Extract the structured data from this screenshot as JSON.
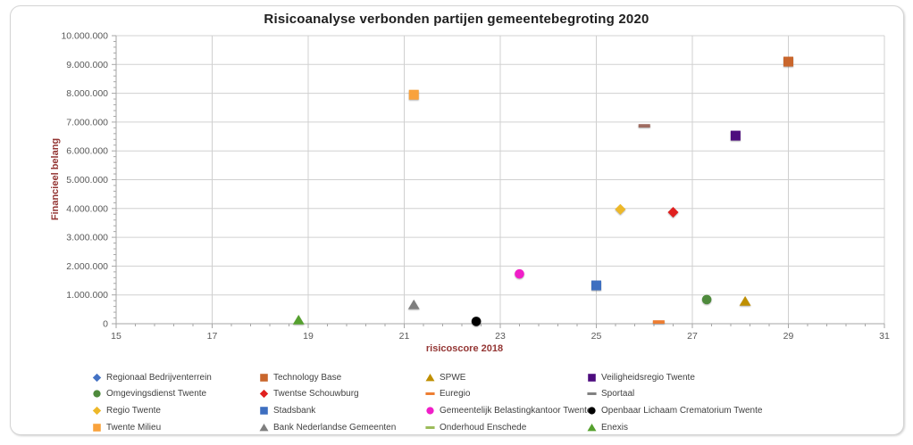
{
  "chart_data": {
    "type": "scatter",
    "title": "Risicoanalyse verbonden partijen gemeentebegroting 2020",
    "xlabel": "risicoscore 2018",
    "ylabel": "Financieel belang",
    "xlim": [
      15,
      31
    ],
    "ylim": [
      0,
      10000000
    ],
    "xticks": [
      15,
      17,
      19,
      21,
      23,
      25,
      27,
      29,
      31
    ],
    "x_minor_unit": 0.4,
    "yticks": [
      0,
      1000000,
      2000000,
      3000000,
      4000000,
      5000000,
      6000000,
      7000000,
      8000000,
      9000000,
      10000000
    ],
    "ytick_labels": [
      "0",
      "1.000.000",
      "2.000.000",
      "3.000.000",
      "4.000.000",
      "5.000.000",
      "6.000.000",
      "7.000.000",
      "8.000.000",
      "9.000.000",
      "10.000.000"
    ],
    "y_minor_unit": 200000,
    "grid": true,
    "legend_position": "bottom",
    "colors": {
      "title": "#1f1f1f",
      "axis_title": "#943634",
      "tick_label": "#595959",
      "axis_line": "#a6a6a6",
      "gridline": "#d0d0d0"
    },
    "series": [
      {
        "name": "Regionaal Bedrijventerrein",
        "marker": "diamond",
        "color": "#4472c4",
        "point": null
      },
      {
        "name": "Technology Base",
        "marker": "square",
        "color": "#c9662c",
        "point": [
          29.0,
          9100000
        ]
      },
      {
        "name": "SPWE",
        "marker": "triangle",
        "color": "#bf8f00",
        "point": [
          28.1,
          780000
        ]
      },
      {
        "name": "Veiligheidsregio Twente",
        "marker": "square",
        "color": "#4d0c7e",
        "point": [
          27.9,
          6530000
        ]
      },
      {
        "name": "Omgevingsdienst Twente",
        "marker": "circle",
        "color": "#4e8a3c",
        "point": [
          27.3,
          840000
        ]
      },
      {
        "name": "Twentse Schouwburg",
        "marker": "diamond",
        "color": "#e0201f",
        "point": [
          26.6,
          3870000
        ]
      },
      {
        "name": "Euregio",
        "marker": "dash",
        "color": "#ed7d31",
        "point": [
          26.3,
          60000
        ]
      },
      {
        "name": "Sportaal",
        "marker": "dash",
        "color": "#808080",
        "point_color": "#9e6b60",
        "point": [
          26.0,
          6870000
        ]
      },
      {
        "name": "Regio Twente",
        "marker": "diamond",
        "color": "#edb829",
        "point": [
          25.5,
          3970000
        ]
      },
      {
        "name": "Stadsbank",
        "marker": "square",
        "color": "#3e6fc0",
        "point": [
          25.0,
          1330000
        ]
      },
      {
        "name": "Gemeentelijk Belastingkantoor Twente",
        "marker": "circle",
        "color": "#f01ec8",
        "point": [
          23.4,
          1730000
        ]
      },
      {
        "name": "Openbaar Lichaam Crematorium Twente",
        "marker": "circle",
        "color": "#000000",
        "point": [
          22.5,
          80000
        ]
      },
      {
        "name": "Twente Milieu",
        "marker": "square",
        "color": "#f9a23c",
        "point": [
          21.2,
          7950000
        ]
      },
      {
        "name": "Bank Nederlandse Gemeenten",
        "marker": "triangle",
        "color": "#7f7f7f",
        "point": [
          21.2,
          660000
        ]
      },
      {
        "name": "Onderhoud Enschede",
        "marker": "dash",
        "color": "#9bbb59",
        "point": null
      },
      {
        "name": "Enexis",
        "marker": "triangle",
        "color": "#55a02e",
        "point": [
          18.8,
          130000
        ]
      }
    ]
  }
}
